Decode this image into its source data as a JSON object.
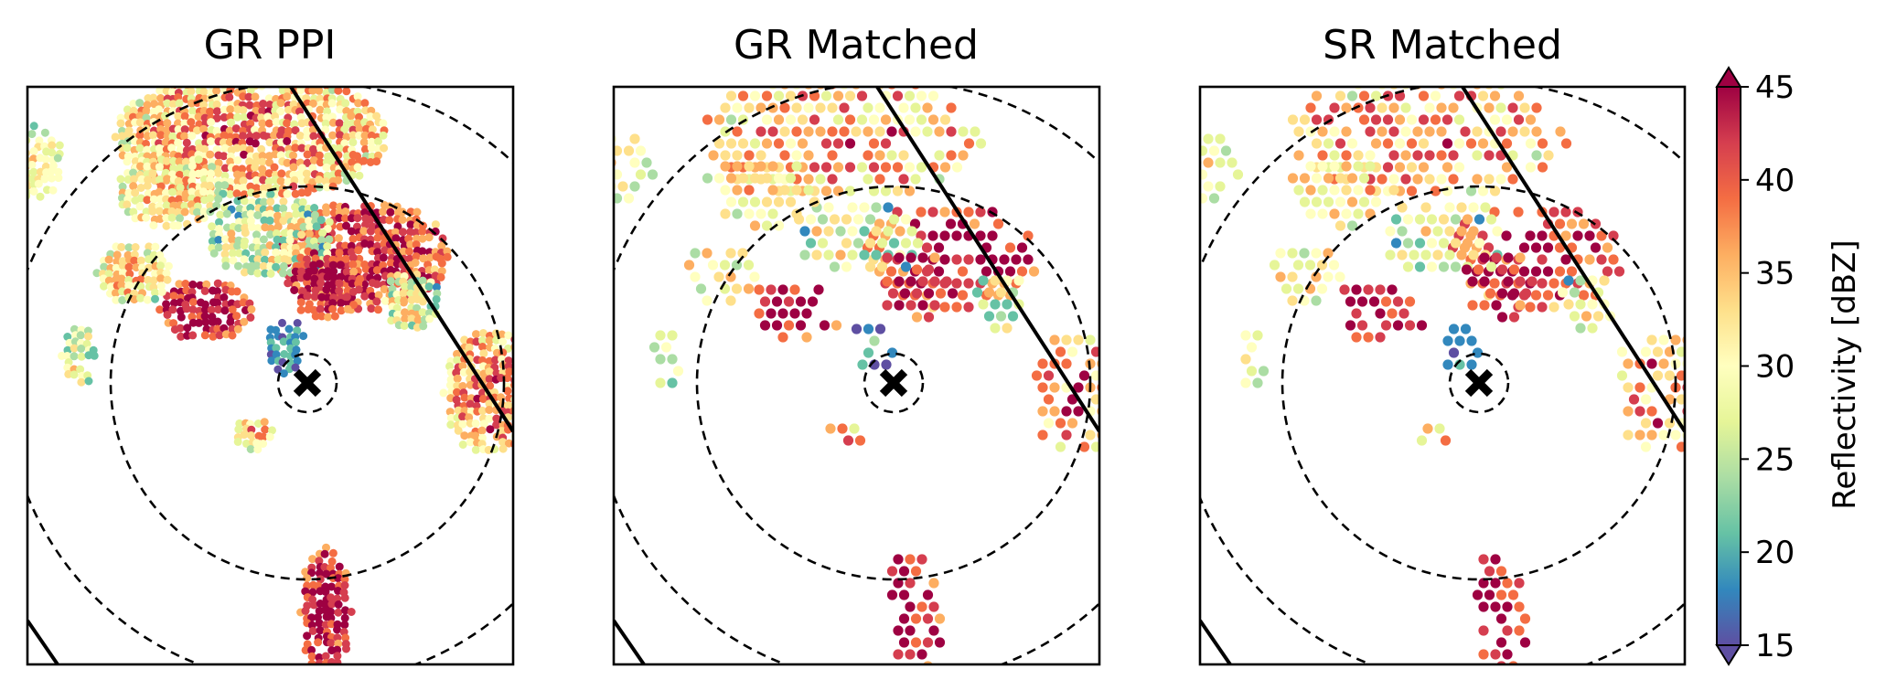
{
  "chart_data": [
    {
      "type": "heatmap",
      "title": "GR PPI",
      "range_rings": 3,
      "center_marker": "x-mark",
      "swath_edges": 2,
      "mode": "dense"
    },
    {
      "type": "scatter",
      "title": "GR Matched",
      "range_rings": 3,
      "center_marker": "x-mark",
      "swath_edges": 2,
      "mode": "points"
    },
    {
      "type": "scatter",
      "title": "SR Matched",
      "range_rings": 3,
      "center_marker": "x-mark",
      "swath_edges": 2,
      "mode": "points"
    }
  ],
  "colorbar": {
    "label": "Reflectivity [dBZ]",
    "vmin": 15,
    "vmax": 45,
    "ticks": [
      "15",
      "20",
      "25",
      "30",
      "35",
      "40",
      "45"
    ],
    "colormap": "Spectral_r",
    "extend": "both",
    "colors": [
      "#5e4fa2",
      "#3288bd",
      "#66c2a5",
      "#abdda4",
      "#e6f598",
      "#ffffbf",
      "#fee08b",
      "#fdae61",
      "#f46d43",
      "#d53e4f",
      "#9e0142"
    ]
  }
}
